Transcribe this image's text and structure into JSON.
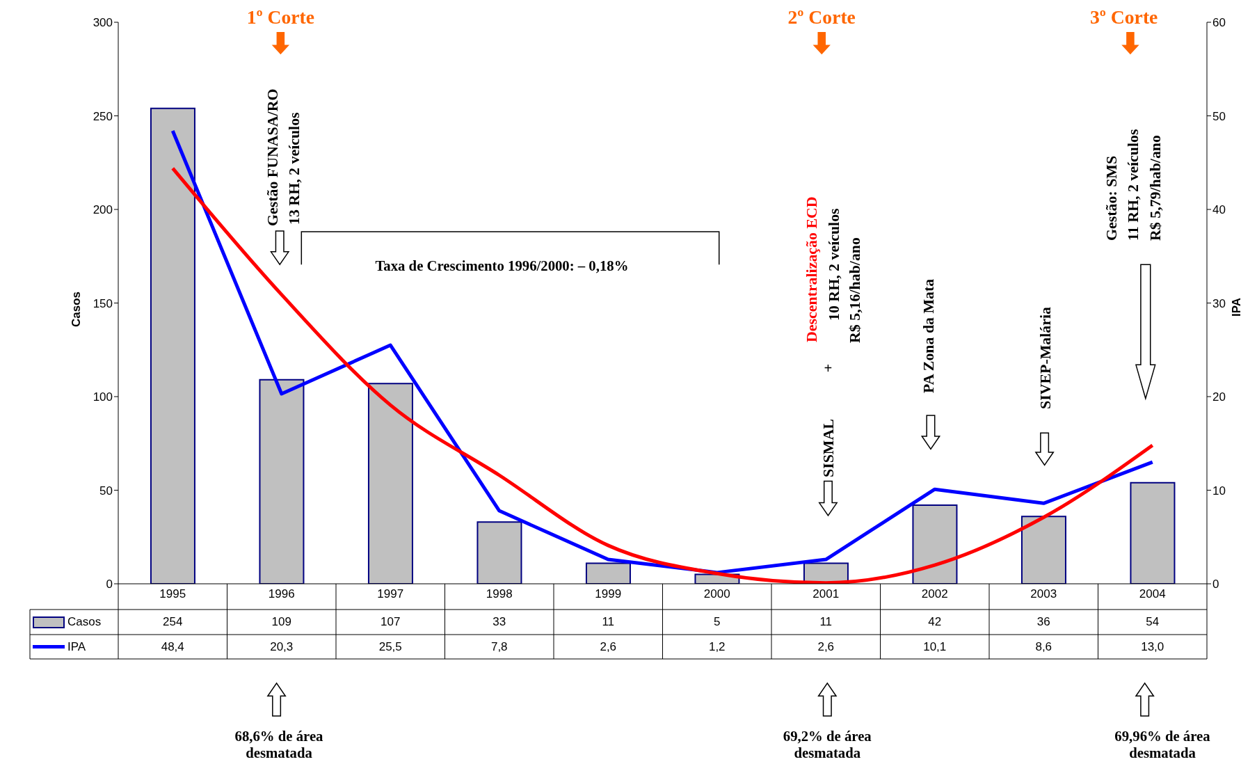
{
  "chart_data": {
    "type": "bar",
    "ylabel": "Casos",
    "y2label": "IPA",
    "categories": [
      "1995",
      "1996",
      "1997",
      "1998",
      "1999",
      "2000",
      "2001",
      "2002",
      "2003",
      "2004"
    ],
    "series": [
      {
        "name": "Casos",
        "color": "#c0c0c0",
        "values": [
          254,
          109,
          107,
          33,
          11,
          5,
          11,
          42,
          36,
          54
        ],
        "value_labels": [
          "254",
          "109",
          "107",
          "33",
          "11",
          "5",
          "11",
          "42",
          "36",
          "54"
        ]
      },
      {
        "name": "IPA",
        "type": "line",
        "color": "#0000ff",
        "axis": "y2",
        "values": [
          48.4,
          20.3,
          25.5,
          7.8,
          2.6,
          1.2,
          2.6,
          10.1,
          8.6,
          13.0
        ],
        "value_labels": [
          "48,4",
          "20,3",
          "25,5",
          "7,8",
          "2,6",
          "1,2",
          "2,6",
          "10,1",
          "8,6",
          "13,0"
        ]
      },
      {
        "type": "line",
        "color": "#ff0000",
        "axis": "y2",
        "values": [
          44.4,
          30.9,
          19.1,
          11.6,
          4.1,
          1.1,
          0.1,
          2.0,
          7.1,
          14.8
        ]
      }
    ],
    "ylim": [
      0,
      300
    ],
    "yticks": [
      0,
      50,
      100,
      150,
      200,
      250,
      300
    ],
    "y2lim": [
      0,
      60
    ],
    "y2ticks": [
      0,
      10,
      20,
      30,
      40,
      50,
      60
    ],
    "legend": "bottom left",
    "marker": "none",
    "line_style": "solid",
    "annotations": [
      "1º Corte",
      "2º Corte",
      "3º Corte",
      "Gestão FUNASA/RO",
      "13 RH, 2 veículos",
      "Taxa de Crescimento 1996/2000: – 0,18%",
      "Descentralização ECD",
      "10 RH, 2 veículos",
      "R$ 5,16/hab/ano",
      "+",
      "SISMAL",
      "PA Zona da Mata",
      "SIVEP-Malária",
      "Gestão: SMS",
      "11 RH, 2 veículos",
      "R$ 5,79/hab/ano",
      "68,6% de área desmatada",
      "69,2% de área desmatada",
      "69,96% de área desmatada"
    ]
  }
}
